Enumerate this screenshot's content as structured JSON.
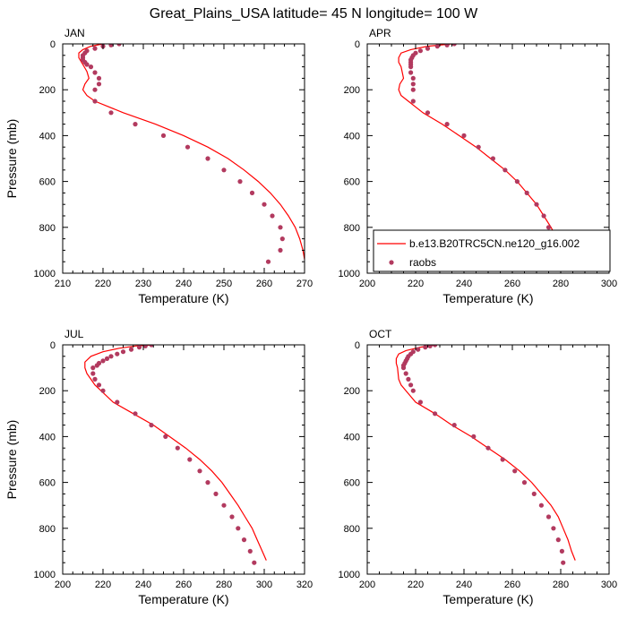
{
  "title": "Great_Plains_USA  latitude= 45 N longitude= 100 W",
  "colors": {
    "model": "#ff0000",
    "obs": "#b23a5f",
    "axis": "#000000"
  },
  "legend": {
    "model_label": "b.e13.B20TRC5CN.ne120_g16.002",
    "obs_label": "raobs",
    "placement": "lower-right of APR panel"
  },
  "chart_data": [
    {
      "type": "line",
      "panel": "JAN",
      "xlabel": "Temperature (K)",
      "ylabel": "Pressure (mb)",
      "xlim": [
        210,
        270
      ],
      "ylim": [
        1000,
        0
      ],
      "y_reversed": true,
      "xticks": [
        210,
        220,
        230,
        240,
        250,
        260,
        270
      ],
      "yticks": [
        0,
        200,
        400,
        600,
        800,
        1000
      ],
      "series": [
        {
          "name": "b.e13.B20TRC5CN.ne120_g16.002",
          "kind": "line",
          "points": [
            [
              220,
              0
            ],
            [
              217,
              10
            ],
            [
              215,
              25
            ],
            [
              214,
              40
            ],
            [
              214,
              60
            ],
            [
              215,
              90
            ],
            [
              216,
              120
            ],
            [
              216.5,
              150
            ],
            [
              215.5,
              175
            ],
            [
              215,
              200
            ],
            [
              216,
              225
            ],
            [
              218,
              250
            ],
            [
              225,
              300
            ],
            [
              233,
              350
            ],
            [
              240,
              400
            ],
            [
              246,
              450
            ],
            [
              251,
              500
            ],
            [
              255,
              550
            ],
            [
              258.5,
              600
            ],
            [
              261.5,
              650
            ],
            [
              264,
              700
            ],
            [
              266,
              750
            ],
            [
              267.7,
              800
            ],
            [
              268.8,
              850
            ],
            [
              269.6,
              900
            ],
            [
              270,
              940
            ]
          ]
        },
        {
          "name": "raobs",
          "kind": "scatter",
          "points": [
            [
              224,
              0
            ],
            [
              222,
              5
            ],
            [
              220,
              10
            ],
            [
              218,
              20
            ],
            [
              216,
              30
            ],
            [
              215.5,
              40
            ],
            [
              215,
              50
            ],
            [
              215,
              60
            ],
            [
              215,
              70
            ],
            [
              215.5,
              80
            ],
            [
              216,
              90
            ],
            [
              217,
              100
            ],
            [
              218,
              125
            ],
            [
              219,
              150
            ],
            [
              219,
              175
            ],
            [
              218,
              200
            ],
            [
              218,
              250
            ],
            [
              222,
              300
            ],
            [
              228,
              350
            ],
            [
              235,
              400
            ],
            [
              241,
              450
            ],
            [
              246,
              500
            ],
            [
              250,
              550
            ],
            [
              254,
              600
            ],
            [
              257,
              650
            ],
            [
              260,
              700
            ],
            [
              262,
              750
            ],
            [
              264,
              800
            ],
            [
              264.5,
              850
            ],
            [
              264,
              900
            ],
            [
              261,
              950
            ]
          ]
        }
      ]
    },
    {
      "type": "line",
      "panel": "APR",
      "xlabel": "Temperature (K)",
      "ylabel": "",
      "xlim": [
        200,
        300
      ],
      "ylim": [
        1000,
        0
      ],
      "y_reversed": true,
      "xticks": [
        200,
        220,
        240,
        260,
        280,
        300
      ],
      "yticks": [
        0,
        200,
        400,
        600,
        800,
        1000
      ],
      "series": [
        {
          "name": "b.e13.B20TRC5CN.ne120_g16.002",
          "kind": "line",
          "points": [
            [
              235,
              0
            ],
            [
              225,
              10
            ],
            [
              218,
              25
            ],
            [
              214,
              40
            ],
            [
              213,
              60
            ],
            [
              213,
              80
            ],
            [
              214,
              100
            ],
            [
              215,
              150
            ],
            [
              213.5,
              175
            ],
            [
              213,
              200
            ],
            [
              214,
              225
            ],
            [
              217,
              250
            ],
            [
              223,
              300
            ],
            [
              231,
              350
            ],
            [
              238,
              400
            ],
            [
              245,
              450
            ],
            [
              251,
              500
            ],
            [
              257,
              550
            ],
            [
              262,
              600
            ],
            [
              266,
              650
            ],
            [
              270,
              700
            ],
            [
              273,
              750
            ],
            [
              276,
              800
            ],
            [
              278.5,
              850
            ],
            [
              281,
              900
            ],
            [
              283,
              940
            ]
          ]
        },
        {
          "name": "raobs",
          "kind": "scatter",
          "points": [
            [
              236,
              0
            ],
            [
              233,
              5
            ],
            [
              229,
              10
            ],
            [
              225,
              20
            ],
            [
              222,
              30
            ],
            [
              220,
              40
            ],
            [
              219,
              50
            ],
            [
              218.5,
              60
            ],
            [
              218,
              70
            ],
            [
              218,
              80
            ],
            [
              218,
              90
            ],
            [
              218,
              100
            ],
            [
              218,
              125
            ],
            [
              219,
              150
            ],
            [
              219,
              175
            ],
            [
              219,
              200
            ],
            [
              219,
              250
            ],
            [
              225,
              300
            ],
            [
              233,
              350
            ],
            [
              240,
              400
            ],
            [
              246,
              450
            ],
            [
              252,
              500
            ],
            [
              257,
              550
            ],
            [
              262,
              600
            ],
            [
              266,
              650
            ],
            [
              270,
              700
            ],
            [
              273,
              750
            ],
            [
              275,
              800
            ],
            [
              277,
              850
            ],
            [
              278,
              900
            ],
            [
              279,
              950
            ]
          ]
        }
      ]
    },
    {
      "type": "line",
      "panel": "JUL",
      "xlabel": "Temperature (K)",
      "ylabel": "Pressure (mb)",
      "xlim": [
        200,
        320
      ],
      "ylim": [
        1000,
        0
      ],
      "y_reversed": true,
      "xticks": [
        200,
        220,
        240,
        260,
        280,
        300,
        320
      ],
      "yticks": [
        0,
        200,
        400,
        600,
        800,
        1000
      ],
      "series": [
        {
          "name": "b.e13.B20TRC5CN.ne120_g16.002",
          "kind": "line",
          "points": [
            [
              245,
              0
            ],
            [
              236,
              5
            ],
            [
              228,
              15
            ],
            [
              220,
              30
            ],
            [
              214,
              50
            ],
            [
              211,
              75
            ],
            [
              211,
              100
            ],
            [
              212,
              125
            ],
            [
              214,
              150
            ],
            [
              216,
              175
            ],
            [
              219,
              200
            ],
            [
              225,
              250
            ],
            [
              235,
              300
            ],
            [
              245,
              350
            ],
            [
              253,
              400
            ],
            [
              261,
              450
            ],
            [
              268,
              500
            ],
            [
              274,
              550
            ],
            [
              279,
              600
            ],
            [
              283,
              650
            ],
            [
              287,
              700
            ],
            [
              290.5,
              750
            ],
            [
              294,
              800
            ],
            [
              296.5,
              850
            ],
            [
              299,
              900
            ],
            [
              301,
              940
            ]
          ]
        },
        {
          "name": "raobs",
          "kind": "scatter",
          "points": [
            [
              244,
              0
            ],
            [
              241,
              5
            ],
            [
              238,
              10
            ],
            [
              234,
              20
            ],
            [
              230,
              30
            ],
            [
              227,
              40
            ],
            [
              224,
              50
            ],
            [
              222,
              60
            ],
            [
              220,
              70
            ],
            [
              218,
              80
            ],
            [
              217,
              90
            ],
            [
              215,
              100
            ],
            [
              215,
              125
            ],
            [
              216,
              150
            ],
            [
              218,
              175
            ],
            [
              220,
              200
            ],
            [
              227,
              250
            ],
            [
              236,
              300
            ],
            [
              244,
              350
            ],
            [
              251,
              400
            ],
            [
              257,
              450
            ],
            [
              263,
              500
            ],
            [
              268,
              550
            ],
            [
              272,
              600
            ],
            [
              276,
              650
            ],
            [
              280,
              700
            ],
            [
              284,
              750
            ],
            [
              287,
              800
            ],
            [
              290,
              850
            ],
            [
              293,
              900
            ],
            [
              295,
              950
            ]
          ]
        }
      ]
    },
    {
      "type": "line",
      "panel": "OCT",
      "xlabel": "Temperature (K)",
      "ylabel": "",
      "xlim": [
        200,
        300
      ],
      "ylim": [
        1000,
        0
      ],
      "y_reversed": true,
      "xticks": [
        200,
        220,
        240,
        260,
        280,
        300
      ],
      "yticks": [
        0,
        200,
        400,
        600,
        800,
        1000
      ],
      "series": [
        {
          "name": "b.e13.B20TRC5CN.ne120_g16.002",
          "kind": "line",
          "points": [
            [
              228,
              0
            ],
            [
              222,
              10
            ],
            [
              216,
              25
            ],
            [
              213,
              40
            ],
            [
              212,
              60
            ],
            [
              212,
              80
            ],
            [
              212.5,
              100
            ],
            [
              213,
              150
            ],
            [
              214,
              175
            ],
            [
              216,
              200
            ],
            [
              220,
              250
            ],
            [
              228,
              300
            ],
            [
              235,
              350
            ],
            [
              243,
              400
            ],
            [
              250,
              450
            ],
            [
              257,
              500
            ],
            [
              263,
              550
            ],
            [
              268,
              600
            ],
            [
              272,
              650
            ],
            [
              276,
              700
            ],
            [
              279,
              750
            ],
            [
              281,
              800
            ],
            [
              283,
              850
            ],
            [
              284.5,
              900
            ],
            [
              286,
              940
            ]
          ]
        },
        {
          "name": "raobs",
          "kind": "scatter",
          "points": [
            [
              228,
              0
            ],
            [
              226,
              5
            ],
            [
              224,
              10
            ],
            [
              221,
              20
            ],
            [
              219,
              30
            ],
            [
              218,
              40
            ],
            [
              217,
              50
            ],
            [
              216.5,
              60
            ],
            [
              216,
              70
            ],
            [
              215.5,
              80
            ],
            [
              215,
              90
            ],
            [
              215,
              100
            ],
            [
              216,
              125
            ],
            [
              217,
              150
            ],
            [
              218,
              175
            ],
            [
              219,
              200
            ],
            [
              222,
              250
            ],
            [
              228,
              300
            ],
            [
              236,
              350
            ],
            [
              244,
              400
            ],
            [
              250,
              450
            ],
            [
              256,
              500
            ],
            [
              261,
              550
            ],
            [
              265,
              600
            ],
            [
              269,
              650
            ],
            [
              272,
              700
            ],
            [
              275,
              750
            ],
            [
              277,
              800
            ],
            [
              279,
              850
            ],
            [
              280.5,
              900
            ],
            [
              281,
              950
            ]
          ]
        }
      ]
    }
  ]
}
